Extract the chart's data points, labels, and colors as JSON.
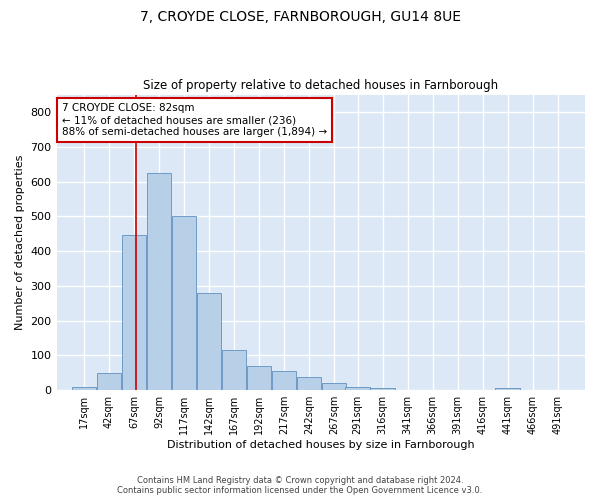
{
  "title1": "7, CROYDE CLOSE, FARNBOROUGH, GU14 8UE",
  "title2": "Size of property relative to detached houses in Farnborough",
  "xlabel": "Distribution of detached houses by size in Farnborough",
  "ylabel": "Number of detached properties",
  "footer1": "Contains HM Land Registry data © Crown copyright and database right 2024.",
  "footer2": "Contains public sector information licensed under the Open Government Licence v3.0.",
  "annotation_line1": "7 CROYDE CLOSE: 82sqm",
  "annotation_line2": "← 11% of detached houses are smaller (236)",
  "annotation_line3": "88% of semi-detached houses are larger (1,894) →",
  "bin_edges": [
    17,
    42,
    67,
    92,
    117,
    142,
    167,
    192,
    217,
    242,
    267,
    291,
    316,
    341,
    366,
    391,
    416,
    441,
    466,
    491,
    516
  ],
  "bar_heights": [
    10,
    50,
    445,
    625,
    500,
    280,
    115,
    70,
    55,
    38,
    22,
    10,
    6,
    0,
    0,
    0,
    0,
    5,
    0,
    0
  ],
  "bar_color": "#b8cfe8",
  "bar_edge_color": "#6090c0",
  "vline_color": "#cc0000",
  "vline_x": 82,
  "ylim": [
    0,
    850
  ],
  "yticks": [
    0,
    100,
    200,
    300,
    400,
    500,
    600,
    700,
    800
  ],
  "bg_color": "#dce8f5",
  "grid_color": "#ffffff",
  "annotation_box_facecolor": "#ffffff",
  "annotation_box_edgecolor": "#cc0000"
}
